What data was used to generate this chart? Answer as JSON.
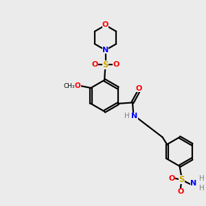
{
  "bg_color": "#ebebeb",
  "bond_color": "#000000",
  "colors": {
    "O": "#ff0000",
    "N": "#0000ff",
    "S": "#ccaa00",
    "C": "#000000",
    "H": "#808080"
  },
  "figsize": [
    3.0,
    3.0
  ],
  "dpi": 100
}
